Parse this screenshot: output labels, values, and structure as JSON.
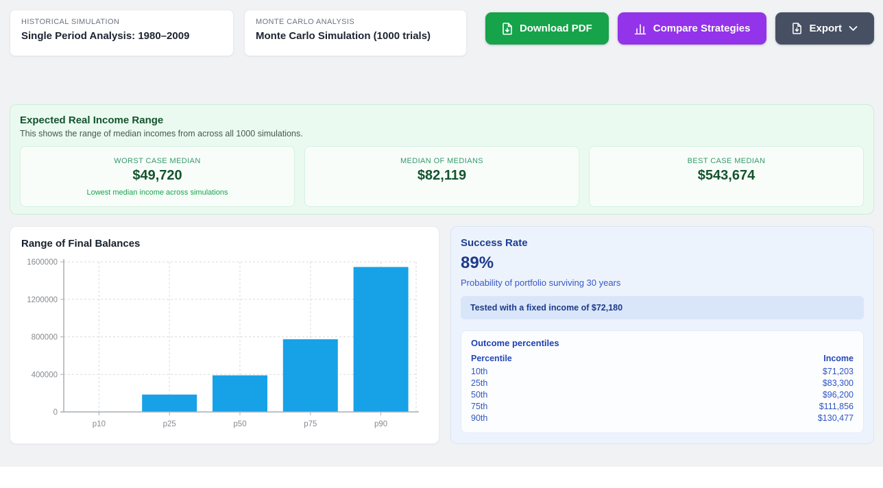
{
  "header": {
    "cards": [
      {
        "label": "HISTORICAL SIMULATION",
        "value": "Single Period Analysis: 1980–2009"
      },
      {
        "label": "MONTE CARLO ANALYSIS",
        "value": "Monte Carlo Simulation (1000 trials)"
      }
    ],
    "buttons": {
      "download_pdf": "Download PDF",
      "compare": "Compare Strategies",
      "export": "Export"
    }
  },
  "income_panel": {
    "title": "Expected Real Income Range",
    "subtitle": "This shows the range of median incomes from across all 1000 simulations.",
    "stats": [
      {
        "label": "WORST CASE MEDIAN",
        "value": "$49,720",
        "note": "Lowest median income across simulations"
      },
      {
        "label": "MEDIAN OF MEDIANS",
        "value": "$82,119",
        "note": ""
      },
      {
        "label": "BEST CASE MEDIAN",
        "value": "$543,674",
        "note": ""
      }
    ]
  },
  "chart_data": {
    "type": "bar",
    "title": "Range of Final Balances",
    "categories": [
      "p10",
      "p25",
      "p50",
      "p75",
      "p90"
    ],
    "values": [
      0,
      185000,
      390000,
      775000,
      1545000
    ],
    "xlabel": "",
    "ylabel": "",
    "ylim": [
      0,
      1600000
    ],
    "yticks": [
      0,
      400000,
      800000,
      1200000,
      1600000
    ],
    "grid": "dashed",
    "legend": "none",
    "bar_color": "#17a2e8"
  },
  "success_panel": {
    "title": "Success Rate",
    "rate": "89%",
    "description": "Probability of portfolio surviving 30 years",
    "banner": "Tested with a fixed income of $72,180",
    "outcome": {
      "title": "Outcome percentiles",
      "columns": [
        "Percentile",
        "Income"
      ],
      "rows": [
        [
          "10th",
          "$71,203"
        ],
        [
          "25th",
          "$83,300"
        ],
        [
          "50th",
          "$96,200"
        ],
        [
          "75th",
          "$111,856"
        ],
        [
          "90th",
          "$130,477"
        ]
      ]
    }
  },
  "colors": {
    "page_bg": "#f1f2f4",
    "green_button": "#16a34a",
    "purple_button": "#9333ea",
    "dark_button": "#475063",
    "green_panel_bg": "#ebfaf0",
    "blue_panel_bg": "#edf3fc",
    "banner_bg": "#d9e6f9",
    "bar_blue": "#17a2e8",
    "dark_green_text": "#14532d",
    "navy_text": "#1e3a8a"
  }
}
